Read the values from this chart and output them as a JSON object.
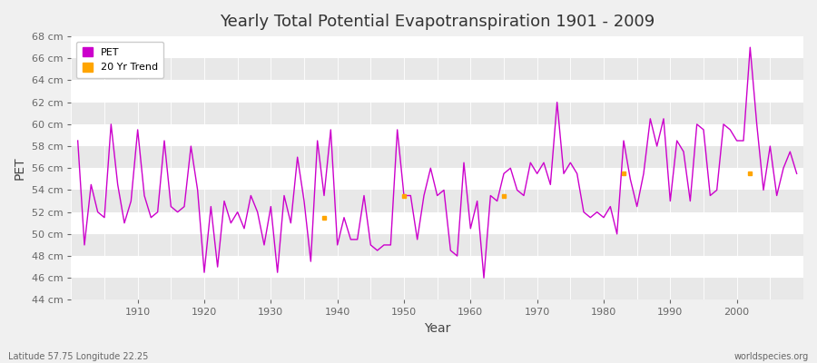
{
  "title": "Yearly Total Potential Evapotranspiration 1901 - 2009",
  "xlabel": "Year",
  "ylabel": "PET",
  "footnote_left": "Latitude 57.75 Longitude 22.25",
  "footnote_right": "worldspecies.org",
  "ylim": [
    44,
    68
  ],
  "ytick_labels": [
    "44 cm",
    "46 cm",
    "48 cm",
    "50 cm",
    "52 cm",
    "54 cm",
    "56 cm",
    "58 cm",
    "60 cm",
    "62 cm",
    "64 cm",
    "66 cm",
    "68 cm"
  ],
  "ytick_values": [
    44,
    46,
    48,
    50,
    52,
    54,
    56,
    58,
    60,
    62,
    64,
    66,
    68
  ],
  "line_color": "#cc00cc",
  "trend_color": "#ffa500",
  "legend_labels": [
    "PET",
    "20 Yr Trend"
  ],
  "years": [
    1901,
    1902,
    1903,
    1904,
    1905,
    1906,
    1907,
    1908,
    1909,
    1910,
    1911,
    1912,
    1913,
    1914,
    1915,
    1916,
    1917,
    1918,
    1919,
    1920,
    1921,
    1922,
    1923,
    1924,
    1925,
    1926,
    1927,
    1928,
    1929,
    1930,
    1931,
    1932,
    1933,
    1934,
    1935,
    1936,
    1937,
    1938,
    1939,
    1940,
    1941,
    1942,
    1943,
    1944,
    1945,
    1946,
    1947,
    1948,
    1949,
    1950,
    1951,
    1952,
    1953,
    1954,
    1955,
    1956,
    1957,
    1958,
    1959,
    1960,
    1961,
    1962,
    1963,
    1964,
    1965,
    1966,
    1967,
    1968,
    1969,
    1970,
    1971,
    1972,
    1973,
    1974,
    1975,
    1976,
    1977,
    1978,
    1979,
    1980,
    1981,
    1982,
    1983,
    1984,
    1985,
    1986,
    1987,
    1988,
    1989,
    1990,
    1991,
    1992,
    1993,
    1994,
    1995,
    1996,
    1997,
    1998,
    1999,
    2000,
    2001,
    2002,
    2003,
    2004,
    2005,
    2006,
    2007,
    2008,
    2009
  ],
  "pet_values": [
    58.5,
    49.0,
    54.5,
    52.0,
    51.5,
    60.0,
    54.5,
    51.0,
    53.0,
    59.5,
    53.5,
    51.5,
    52.0,
    58.5,
    52.5,
    52.0,
    52.5,
    58.0,
    54.0,
    46.5,
    52.5,
    47.0,
    53.0,
    51.0,
    52.0,
    50.5,
    53.5,
    52.0,
    49.0,
    52.5,
    46.5,
    53.5,
    51.0,
    57.0,
    53.0,
    47.5,
    58.5,
    53.5,
    59.5,
    49.0,
    51.5,
    49.5,
    49.5,
    53.5,
    49.0,
    48.5,
    49.0,
    49.0,
    59.5,
    53.5,
    53.5,
    49.5,
    53.5,
    56.0,
    53.5,
    54.0,
    48.5,
    48.0,
    56.5,
    50.5,
    53.0,
    46.0,
    53.5,
    53.0,
    55.5,
    56.0,
    54.0,
    53.5,
    56.5,
    55.5,
    56.5,
    54.5,
    62.0,
    55.5,
    56.5,
    55.5,
    52.0,
    51.5,
    52.0,
    51.5,
    52.5,
    50.0,
    58.5,
    55.0,
    52.5,
    55.5,
    60.5,
    58.0,
    60.5,
    53.0,
    58.5,
    57.5,
    53.0,
    60.0,
    59.5,
    53.5,
    54.0,
    60.0,
    59.5,
    58.5,
    58.5,
    67.0,
    60.0,
    54.0,
    58.0,
    53.5,
    56.0,
    57.5,
    55.5
  ],
  "trend_dot_years": [
    1938,
    1950,
    1965,
    1983,
    2002
  ],
  "trend_dot_values": [
    51.5,
    53.5,
    53.5,
    55.5,
    55.5
  ],
  "band_ranges": [
    [
      44,
      46
    ],
    [
      48,
      50
    ],
    [
      52,
      54
    ],
    [
      56,
      58
    ],
    [
      60,
      62
    ],
    [
      64,
      66
    ]
  ],
  "band_color": "#e8e8e8",
  "white_color": "#f5f5f5"
}
